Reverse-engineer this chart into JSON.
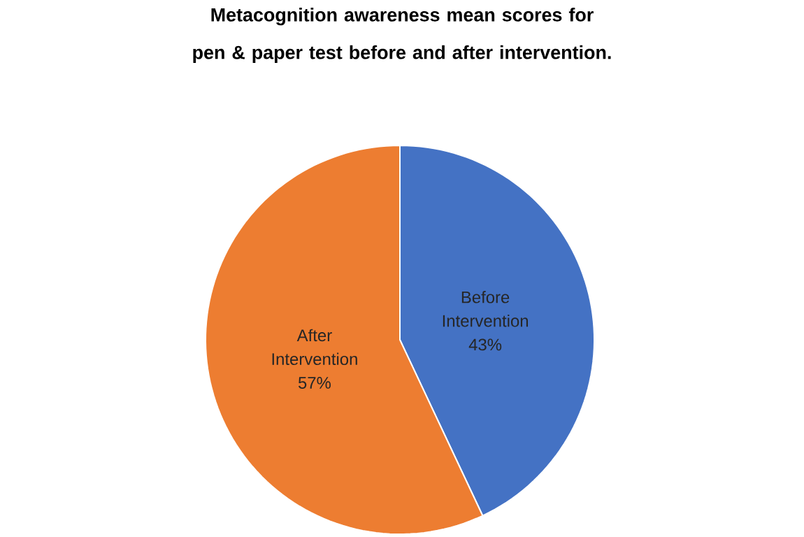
{
  "chart_data": {
    "type": "pie",
    "title": "Metacognition awareness mean scores for pen & paper test before and after intervention.",
    "categories": [
      "Before Intervention",
      "After Intervention"
    ],
    "values": [
      43,
      57
    ],
    "colors": [
      "#4472c4",
      "#ed7d31"
    ],
    "value_labels": [
      "43%",
      "57%"
    ],
    "legend": false
  }
}
